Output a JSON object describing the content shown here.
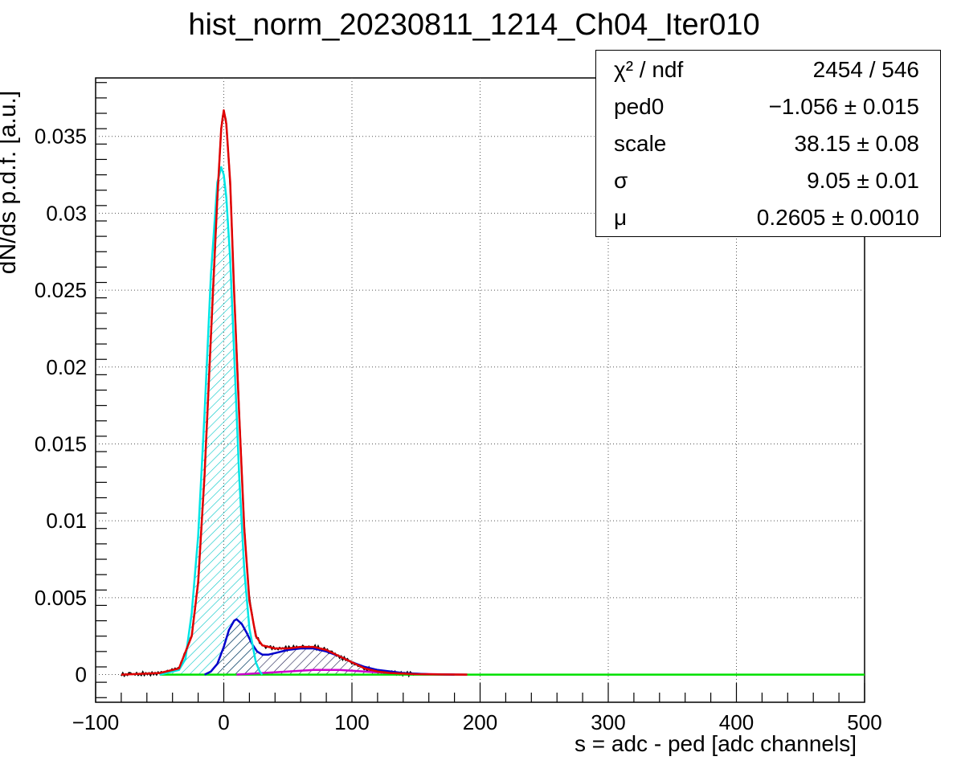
{
  "chart_data": {
    "type": "line",
    "title": "hist_norm_20230811_1214_Ch04_Iter010",
    "xlabel": "s = adc - ped [adc channels]",
    "ylabel": "dN/ds p.d.f. [a.u.]",
    "xlim": [
      -100,
      500
    ],
    "ylim": [
      -0.0018,
      0.0388
    ],
    "x_ticks": [
      "−100",
      "0",
      "100",
      "200",
      "300",
      "400",
      "500"
    ],
    "y_ticks": [
      "0",
      "0.005",
      "0.01",
      "0.015",
      "0.02",
      "0.025",
      "0.03",
      "0.035"
    ],
    "grid": true,
    "stats": [
      {
        "name": "χ² / ndf",
        "value": "2454 / 546"
      },
      {
        "name": "ped0",
        "value": "−1.056 ± 0.015"
      },
      {
        "name": "scale",
        "value": "38.15 ± 0.08"
      },
      {
        "name": "σ",
        "value": "9.05 ± 0.01"
      },
      {
        "name": "μ",
        "value": "0.2605 ± 0.0010"
      }
    ],
    "series": [
      {
        "color": "#e00000",
        "x": [
          -80,
          -50,
          -35,
          -25,
          -20,
          -15,
          -10,
          -5,
          -2,
          0,
          2,
          5,
          8,
          12,
          16,
          20,
          25,
          30,
          35,
          40,
          50,
          60,
          70,
          80,
          90,
          100,
          110,
          120,
          130,
          150,
          170,
          190
        ],
        "y": [
          0,
          0.0001,
          0.0004,
          0.0025,
          0.006,
          0.013,
          0.022,
          0.031,
          0.0355,
          0.0367,
          0.0358,
          0.032,
          0.025,
          0.017,
          0.0095,
          0.0048,
          0.0025,
          0.0019,
          0.0018,
          0.0017,
          0.0017,
          0.0018,
          0.0018,
          0.0016,
          0.0012,
          0.0008,
          0.0004,
          0.0002,
          0.0001,
          3e-05,
          1e-05,
          0
        ]
      },
      {
        "color": "#00e5e5",
        "x": [
          -50,
          -35,
          -30,
          -25,
          -20,
          -15,
          -10,
          -5,
          -2,
          0,
          2,
          5,
          8,
          12,
          16,
          20,
          25,
          28,
          30
        ],
        "y": [
          0,
          0.0003,
          0.001,
          0.004,
          0.009,
          0.017,
          0.026,
          0.032,
          0.033,
          0.0325,
          0.031,
          0.027,
          0.021,
          0.013,
          0.0068,
          0.003,
          0.0008,
          0.0002,
          0
        ]
      },
      {
        "color": "#0000cc",
        "x": [
          -15,
          -10,
          -5,
          0,
          4,
          8,
          10,
          14,
          18,
          22,
          26,
          30,
          35,
          40,
          50,
          60,
          70,
          80,
          90,
          100,
          110,
          120,
          140,
          160,
          180
        ],
        "y": [
          0,
          0.0002,
          0.0007,
          0.0018,
          0.0029,
          0.0035,
          0.0036,
          0.0033,
          0.0027,
          0.002,
          0.0015,
          0.0013,
          0.0013,
          0.0014,
          0.0016,
          0.0017,
          0.0017,
          0.0015,
          0.0012,
          0.0008,
          0.0005,
          0.0003,
          0.0001,
          2e-05,
          0
        ]
      },
      {
        "color": "#cc00cc",
        "x": [
          10,
          30,
          50,
          70,
          90,
          110,
          130,
          150,
          170,
          190
        ],
        "y": [
          0,
          0.0001,
          0.0002,
          0.0003,
          0.0003,
          0.0002,
          0.0001,
          5e-05,
          2e-05,
          0
        ]
      },
      {
        "color": "#00e000",
        "x": [
          -50,
          500
        ],
        "y": [
          0,
          0
        ]
      }
    ]
  }
}
